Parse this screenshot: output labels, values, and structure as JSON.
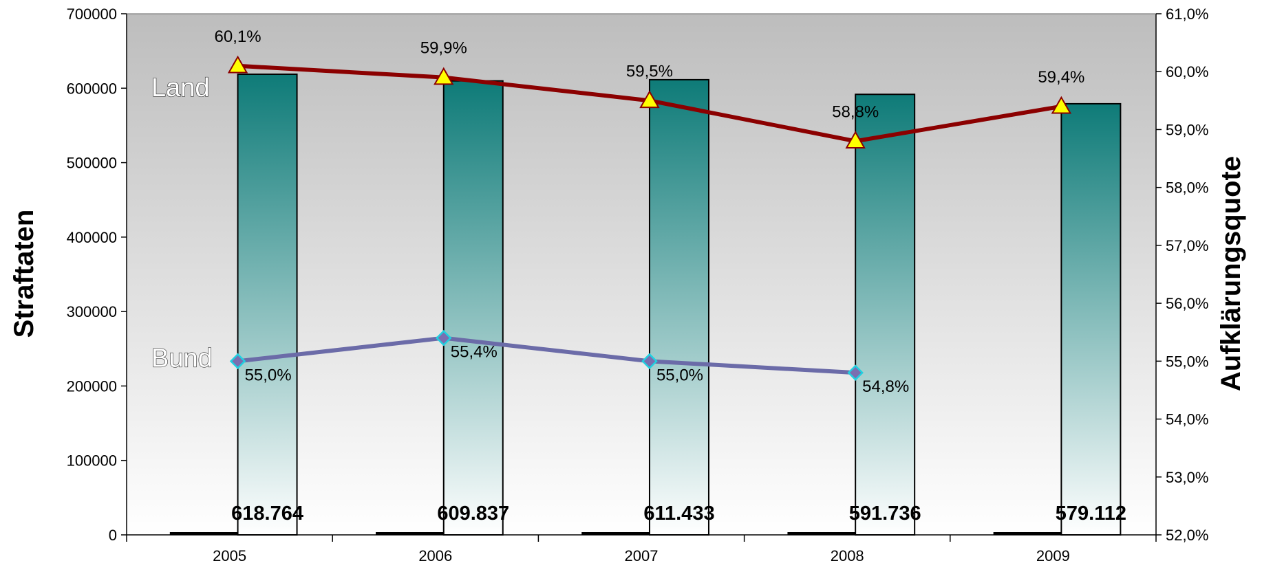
{
  "chart_data": {
    "type": "bar",
    "categories": [
      "2005",
      "2006",
      "2007",
      "2008",
      "2009"
    ],
    "bars": {
      "values": [
        618764,
        609837,
        611433,
        591736,
        579112
      ],
      "labels": [
        "618.764",
        "609.837",
        "611.433",
        "591.736",
        "579.112"
      ]
    },
    "line_series": [
      {
        "name": "Land",
        "axis": "right",
        "values": [
          60.1,
          59.9,
          59.5,
          58.8,
          59.4
        ],
        "labels": [
          "60,1%",
          "59,9%",
          "59,5%",
          "58,8%",
          "59,4%"
        ],
        "color": "#8b0000",
        "marker": "triangle",
        "marker_color": "#ffff00"
      },
      {
        "name": "Bund",
        "axis": "right",
        "values": [
          55.0,
          55.4,
          55.0,
          54.8
        ],
        "labels": [
          "55,0%",
          "55,4%",
          "55,0%",
          "54,8%"
        ],
        "color": "#6b6ba8",
        "marker": "diamond",
        "marker_color": "#7a6fb0"
      }
    ],
    "ylabel": "Straftaten",
    "y2label": "Aufklärungsquote",
    "ylim": [
      0,
      700000
    ],
    "y2lim": [
      52.0,
      61.0
    ],
    "yticks": [
      "0",
      "100000",
      "200000",
      "300000",
      "400000",
      "500000",
      "600000",
      "700000"
    ],
    "y2ticks": [
      "52,0%",
      "53,0%",
      "54,0%",
      "55,0%",
      "56,0%",
      "57,0%",
      "58,0%",
      "59,0%",
      "60,0%",
      "61,0%"
    ],
    "colors": {
      "bar_top": "#0e7b78",
      "bar_bottom": "#ffffff",
      "plot_bg_top": "#bdbdbd",
      "plot_bg_bottom": "#ffffff"
    }
  }
}
